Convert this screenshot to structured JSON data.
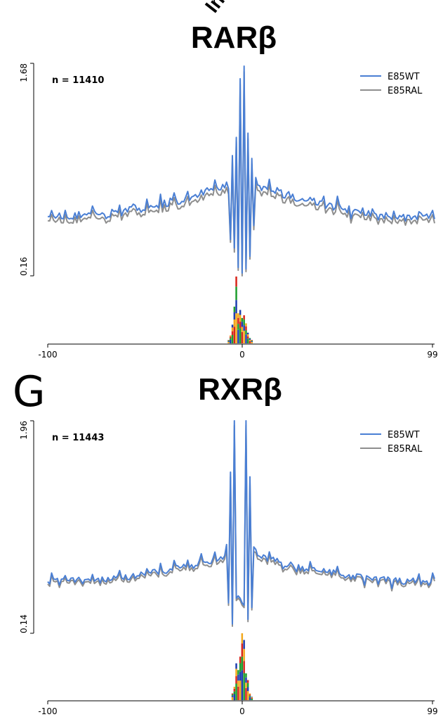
{
  "top_fragment": "In",
  "panel_letter": "G",
  "colors": {
    "E85WT": "#4a7fd4",
    "E85RAL": "#8e8e8e",
    "motif": [
      "#f2a81d",
      "#1f3fb0",
      "#1e9e2e",
      "#d9261c"
    ]
  },
  "chart_data": [
    {
      "type": "line",
      "title": "RARβ",
      "n_label": "n = 11410",
      "xlim": [
        -100,
        99
      ],
      "x_ticks": [
        "-100",
        "0",
        "99"
      ],
      "ylim": [
        0.16,
        1.68
      ],
      "y_ticks": [
        "0.16",
        "1.68"
      ],
      "legend": [
        "E85WT",
        "E85RAL"
      ],
      "legend_position": "top-right",
      "base": {
        "E85WT": {
          "edge": 0.58,
          "center": 0.85
        },
        "E85RAL": {
          "edge": 0.55,
          "center": 0.81
        }
      },
      "center_values": [
        {
          "x": -6,
          "E85WT": 0.42,
          "E85RAL": 0.4
        },
        {
          "x": -5,
          "E85WT": 1.02,
          "E85RAL": 0.98
        },
        {
          "x": -4,
          "E85WT": 0.36,
          "E85RAL": 0.33
        },
        {
          "x": -3,
          "E85WT": 1.15,
          "E85RAL": 1.12
        },
        {
          "x": -2,
          "E85WT": 0.22,
          "E85RAL": 0.2
        },
        {
          "x": -1,
          "E85WT": 1.57,
          "E85RAL": 1.53
        },
        {
          "x": 0,
          "E85WT": 0.18,
          "E85RAL": 0.16
        },
        {
          "x": 1,
          "E85WT": 1.66,
          "E85RAL": 1.62
        },
        {
          "x": 2,
          "E85WT": 0.21,
          "E85RAL": 0.19
        },
        {
          "x": 3,
          "E85WT": 1.18,
          "E85RAL": 1.14
        },
        {
          "x": 4,
          "E85WT": 0.3,
          "E85RAL": 0.28
        },
        {
          "x": 5,
          "E85WT": 1.0,
          "E85RAL": 0.96
        },
        {
          "x": 6,
          "E85WT": 0.52,
          "E85RAL": 0.49
        }
      ],
      "motif": [
        {
          "x": -7,
          "h": 0.05
        },
        {
          "x": -6,
          "h": 0.12
        },
        {
          "x": -5,
          "h": 0.28
        },
        {
          "x": -4,
          "h": 0.55
        },
        {
          "x": -3,
          "h": 1.0
        },
        {
          "x": -2,
          "h": 0.45
        },
        {
          "x": -1,
          "h": 0.5
        },
        {
          "x": 0,
          "h": 0.38
        },
        {
          "x": 1,
          "h": 0.42
        },
        {
          "x": 2,
          "h": 0.3
        },
        {
          "x": 3,
          "h": 0.16
        },
        {
          "x": 4,
          "h": 0.08
        },
        {
          "x": 5,
          "h": 0.05
        }
      ]
    },
    {
      "type": "line",
      "title": "RXRβ",
      "n_label": "n = 11443",
      "xlim": [
        -100,
        99
      ],
      "x_ticks": [
        "-100",
        "0",
        "99"
      ],
      "ylim": [
        0.14,
        1.96
      ],
      "y_ticks": [
        "0.14",
        "1.96"
      ],
      "legend": [
        "E85WT",
        "E85RAL"
      ],
      "legend_position": "top-right",
      "base": {
        "E85WT": {
          "edge": 0.58,
          "center": 0.84
        },
        "E85RAL": {
          "edge": 0.56,
          "center": 0.81
        }
      },
      "center_values": [
        {
          "x": -8,
          "E85WT": 0.9,
          "E85RAL": 0.86
        },
        {
          "x": -7,
          "E85WT": 0.4,
          "E85RAL": 0.38
        },
        {
          "x": -6,
          "E85WT": 1.52,
          "E85RAL": 1.48
        },
        {
          "x": -5,
          "E85WT": 0.22,
          "E85RAL": 0.2
        },
        {
          "x": -4,
          "E85WT": 1.96,
          "E85RAL": 1.92
        },
        {
          "x": -3,
          "E85WT": 0.44,
          "E85RAL": 0.42
        },
        {
          "x": -2,
          "E85WT": 0.46,
          "E85RAL": 0.44
        },
        {
          "x": -1,
          "E85WT": 0.44,
          "E85RAL": 0.42
        },
        {
          "x": 0,
          "E85WT": 0.4,
          "E85RAL": 0.38
        },
        {
          "x": 1,
          "E85WT": 0.38,
          "E85RAL": 0.36
        },
        {
          "x": 2,
          "E85WT": 1.96,
          "E85RAL": 1.92
        },
        {
          "x": 3,
          "E85WT": 0.26,
          "E85RAL": 0.24
        },
        {
          "x": 4,
          "E85WT": 1.48,
          "E85RAL": 1.44
        },
        {
          "x": 5,
          "E85WT": 0.36,
          "E85RAL": 0.34
        },
        {
          "x": 6,
          "E85WT": 0.88,
          "E85RAL": 0.84
        }
      ],
      "motif": [
        {
          "x": -5,
          "h": 0.1
        },
        {
          "x": -4,
          "h": 0.2
        },
        {
          "x": -3,
          "h": 0.55
        },
        {
          "x": -2,
          "h": 0.45
        },
        {
          "x": -1,
          "h": 0.65
        },
        {
          "x": 0,
          "h": 1.0
        },
        {
          "x": 1,
          "h": 0.9
        },
        {
          "x": 2,
          "h": 0.4
        },
        {
          "x": 3,
          "h": 0.3
        },
        {
          "x": 4,
          "h": 0.1
        },
        {
          "x": 5,
          "h": 0.05
        }
      ]
    }
  ]
}
